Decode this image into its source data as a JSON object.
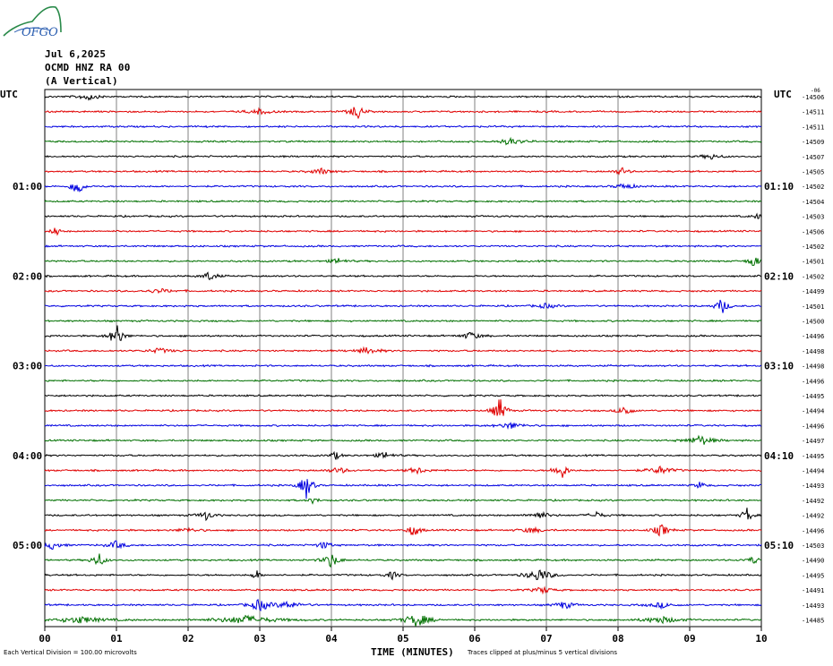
{
  "logo": {
    "text": "OFGO",
    "brand_color": "#2a8a4a",
    "text_color": "#2a5db0"
  },
  "header": {
    "date": "Jul 6,2025",
    "station": "OCMD HNZ RA 00",
    "component": "(A Vertical)"
  },
  "utc_left": "UTC",
  "utc_right": "UTC",
  "footer": {
    "scale_note": "Each Vertical Division =  100.00 microvolts",
    "x_title": "TIME (MINUTES)",
    "clip_note": "Traces clipped at plus/minus 5 vertical divisions"
  },
  "chart_data": {
    "type": "line",
    "title": "",
    "xlabel": "TIME (MINUTES)",
    "xlim": [
      0,
      10
    ],
    "x_ticks": [
      "00",
      "01",
      "02",
      "03",
      "04",
      "05",
      "06",
      "07",
      "08",
      "09",
      "10"
    ],
    "trace_colors": [
      "#000000",
      "#e00000",
      "#0000e0",
      "#007000"
    ],
    "left_time_labels": [
      {
        "row": 6,
        "label": "01:00"
      },
      {
        "row": 12,
        "label": "02:00"
      },
      {
        "row": 18,
        "label": "03:00"
      },
      {
        "row": 24,
        "label": "04:00"
      },
      {
        "row": 30,
        "label": "05:00"
      }
    ],
    "right_time_labels": [
      {
        "row": 6,
        "label": "01:10"
      },
      {
        "row": 12,
        "label": "02:10"
      },
      {
        "row": 18,
        "label": "03:10"
      },
      {
        "row": 24,
        "label": "04:10"
      },
      {
        "row": 30,
        "label": "05:10"
      }
    ],
    "right_top_label": "-06",
    "trace_offsets": [
      "-14506",
      "-14511",
      "-14511",
      "-14509",
      "-14507",
      "-14505",
      "-14502",
      "-14504",
      "-14503",
      "-14506",
      "-14502",
      "-14501",
      "-14502",
      "-14499",
      "-14501",
      "-14500",
      "-14496",
      "-14498",
      "-14498",
      "-14496",
      "-14495",
      "-14494",
      "-14496",
      "-14497",
      "-14495",
      "-14494",
      "-14493",
      "-14492",
      "-14492",
      "-14496",
      "-14503",
      "-14490",
      "-14495",
      "-14491",
      "-14493",
      "-14485"
    ],
    "events": [
      {
        "row": 0,
        "minute": 0.6,
        "amp": 0.6,
        "width": 0.15
      },
      {
        "row": 1,
        "minute": 3.0,
        "amp": 0.4,
        "width": 0.2
      },
      {
        "row": 1,
        "minute": 4.35,
        "amp": 1.4,
        "width": 0.1
      },
      {
        "row": 3,
        "minute": 6.5,
        "amp": 0.5,
        "width": 0.2
      },
      {
        "row": 4,
        "minute": 9.3,
        "amp": 0.4,
        "width": 0.15
      },
      {
        "row": 5,
        "minute": 3.85,
        "amp": 0.5,
        "width": 0.15
      },
      {
        "row": 5,
        "minute": 8.05,
        "amp": 0.6,
        "width": 0.1
      },
      {
        "row": 6,
        "minute": 0.45,
        "amp": 2.2,
        "width": 0.08
      },
      {
        "row": 6,
        "minute": 8.1,
        "amp": 0.5,
        "width": 0.15
      },
      {
        "row": 8,
        "minute": 9.95,
        "amp": 0.4,
        "width": 0.08
      },
      {
        "row": 9,
        "minute": 0.15,
        "amp": 1.2,
        "width": 0.05
      },
      {
        "row": 11,
        "minute": 4.1,
        "amp": 0.4,
        "width": 0.15
      },
      {
        "row": 11,
        "minute": 9.9,
        "amp": 1.2,
        "width": 0.08
      },
      {
        "row": 12,
        "minute": 2.3,
        "amp": 0.7,
        "width": 0.12
      },
      {
        "row": 13,
        "minute": 1.6,
        "amp": 0.3,
        "width": 0.25
      },
      {
        "row": 14,
        "minute": 7.0,
        "amp": 0.4,
        "width": 0.15
      },
      {
        "row": 14,
        "minute": 9.45,
        "amp": 1.3,
        "width": 0.1
      },
      {
        "row": 16,
        "minute": 1.0,
        "amp": 2.0,
        "width": 0.1
      },
      {
        "row": 16,
        "minute": 5.95,
        "amp": 0.6,
        "width": 0.15
      },
      {
        "row": 17,
        "minute": 1.6,
        "amp": 0.4,
        "width": 0.2
      },
      {
        "row": 17,
        "minute": 4.5,
        "amp": 0.5,
        "width": 0.2
      },
      {
        "row": 21,
        "minute": 6.35,
        "amp": 2.0,
        "width": 0.1
      },
      {
        "row": 21,
        "minute": 8.1,
        "amp": 1.0,
        "width": 0.1
      },
      {
        "row": 22,
        "minute": 6.5,
        "amp": 0.5,
        "width": 0.2
      },
      {
        "row": 23,
        "minute": 9.15,
        "amp": 0.8,
        "width": 0.2
      },
      {
        "row": 24,
        "minute": 4.05,
        "amp": 0.7,
        "width": 0.08
      },
      {
        "row": 24,
        "minute": 4.75,
        "amp": 0.5,
        "width": 0.15
      },
      {
        "row": 25,
        "minute": 4.1,
        "amp": 0.5,
        "width": 0.15
      },
      {
        "row": 25,
        "minute": 5.2,
        "amp": 0.5,
        "width": 0.15
      },
      {
        "row": 25,
        "minute": 7.2,
        "amp": 1.6,
        "width": 0.1
      },
      {
        "row": 25,
        "minute": 8.6,
        "amp": 0.6,
        "width": 0.2
      },
      {
        "row": 26,
        "minute": 3.65,
        "amp": 2.0,
        "width": 0.1
      },
      {
        "row": 26,
        "minute": 9.15,
        "amp": 0.6,
        "width": 0.08
      },
      {
        "row": 27,
        "minute": 3.75,
        "amp": 0.5,
        "width": 0.08
      },
      {
        "row": 28,
        "minute": 2.25,
        "amp": 0.7,
        "width": 0.12
      },
      {
        "row": 28,
        "minute": 6.9,
        "amp": 0.6,
        "width": 0.15
      },
      {
        "row": 28,
        "minute": 7.7,
        "amp": 0.5,
        "width": 0.12
      },
      {
        "row": 28,
        "minute": 9.8,
        "amp": 1.2,
        "width": 0.08
      },
      {
        "row": 29,
        "minute": 2.0,
        "amp": 0.3,
        "width": 0.2
      },
      {
        "row": 29,
        "minute": 5.15,
        "amp": 1.1,
        "width": 0.1
      },
      {
        "row": 29,
        "minute": 6.8,
        "amp": 0.4,
        "width": 0.2
      },
      {
        "row": 29,
        "minute": 8.6,
        "amp": 1.0,
        "width": 0.12
      },
      {
        "row": 30,
        "minute": 0.1,
        "amp": 0.6,
        "width": 0.15
      },
      {
        "row": 30,
        "minute": 1.0,
        "amp": 0.6,
        "width": 0.15
      },
      {
        "row": 30,
        "minute": 3.9,
        "amp": 0.6,
        "width": 0.12
      },
      {
        "row": 31,
        "minute": 0.75,
        "amp": 1.2,
        "width": 0.1
      },
      {
        "row": 31,
        "minute": 4.0,
        "amp": 1.2,
        "width": 0.12
      },
      {
        "row": 31,
        "minute": 9.9,
        "amp": 0.5,
        "width": 0.15
      },
      {
        "row": 32,
        "minute": 2.95,
        "amp": 0.9,
        "width": 0.06
      },
      {
        "row": 32,
        "minute": 4.85,
        "amp": 0.6,
        "width": 0.1
      },
      {
        "row": 32,
        "minute": 6.9,
        "amp": 1.0,
        "width": 0.2
      },
      {
        "row": 33,
        "minute": 6.95,
        "amp": 0.5,
        "width": 0.15
      },
      {
        "row": 34,
        "minute": 3.0,
        "amp": 1.0,
        "width": 0.15
      },
      {
        "row": 34,
        "minute": 3.4,
        "amp": 0.6,
        "width": 0.2
      },
      {
        "row": 34,
        "minute": 7.25,
        "amp": 0.6,
        "width": 0.15
      },
      {
        "row": 34,
        "minute": 8.6,
        "amp": 0.4,
        "width": 0.2
      },
      {
        "row": 35,
        "minute": 0.5,
        "amp": 0.5,
        "width": 0.4
      },
      {
        "row": 35,
        "minute": 2.8,
        "amp": 0.6,
        "width": 0.5
      },
      {
        "row": 35,
        "minute": 5.2,
        "amp": 1.1,
        "width": 0.2
      },
      {
        "row": 35,
        "minute": 8.6,
        "amp": 0.5,
        "width": 0.3
      }
    ],
    "grid": true
  }
}
